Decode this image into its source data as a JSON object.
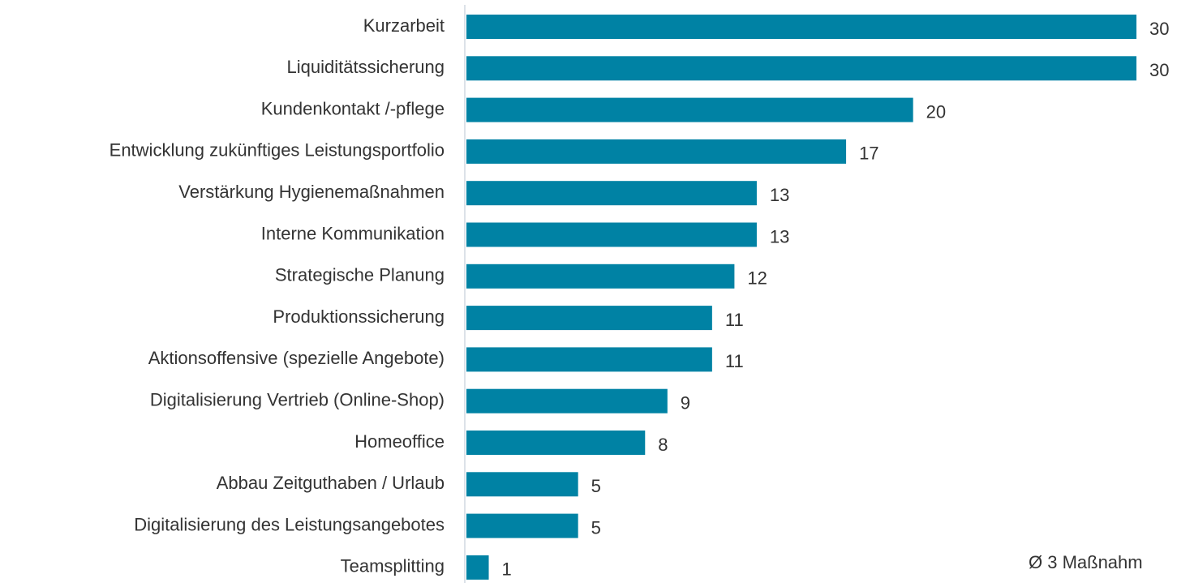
{
  "chart_data": {
    "type": "bar",
    "orientation": "horizontal",
    "categories": [
      "Kurzarbeit",
      "Liquiditätssicherung",
      "Kundenkontakt /-pflege",
      "Entwicklung zukünftiges Leistungsportfolio",
      "Verstärkung Hygienemaßnahmen",
      "Interne Kommunikation",
      "Strategische Planung",
      "Produktionssicherung",
      "Aktionsoffensive (spezielle Angebote)",
      "Digitalisierung Vertrieb (Online-Shop)",
      "Homeoffice",
      "Abbau Zeitguthaben / Urlaub",
      "Digitalisierung des Leistungsangebotes",
      "Teamsplitting"
    ],
    "values": [
      30,
      30,
      20,
      17,
      13,
      13,
      12,
      11,
      11,
      9,
      8,
      5,
      5,
      1
    ],
    "color": "#0082a4",
    "annotation": "Ø 3 Maßnahm"
  }
}
